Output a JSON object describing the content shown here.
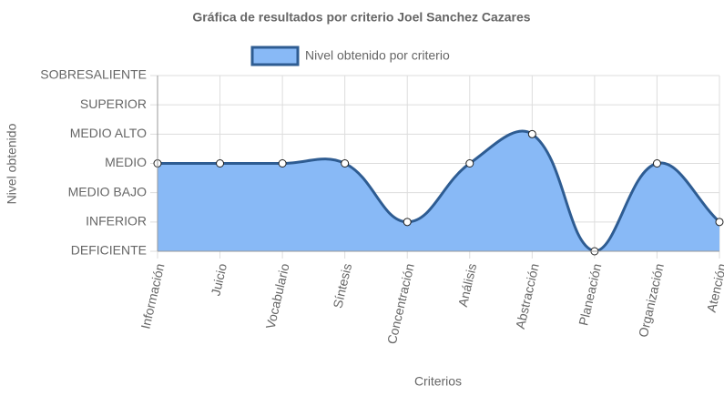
{
  "chart_data": {
    "type": "line",
    "title": "Gráfica de resultados por criterio Joel Sanchez Cazares",
    "x_label": "Criterios",
    "y_label": "Nivel obtenido",
    "categories": [
      "Información",
      "Juicio",
      "Vocabulario",
      "Síntesis",
      "Concentración",
      "Análisis",
      "Abstracción",
      "Planeación",
      "Organización",
      "Atención"
    ],
    "series": [
      {
        "name": "Nivel obtenido por criterio",
        "color": "#2e5c92",
        "fill": "#88b9f6",
        "values": [
          3,
          3,
          3,
          3,
          1,
          3,
          4,
          0,
          3,
          1
        ]
      }
    ],
    "ylim": [
      0,
      6
    ],
    "yticks": [
      {
        "value": 0,
        "label": "DEFICIENTE"
      },
      {
        "value": 1,
        "label": "INFERIOR"
      },
      {
        "value": 2,
        "label": "MEDIO BAJO"
      },
      {
        "value": 3,
        "label": "MEDIO"
      },
      {
        "value": 4,
        "label": "MEDIO ALTO"
      },
      {
        "value": 5,
        "label": "SUPERIOR"
      },
      {
        "value": 6,
        "label": "SOBRESALIENTE"
      }
    ],
    "grid": true,
    "legend": "top"
  }
}
